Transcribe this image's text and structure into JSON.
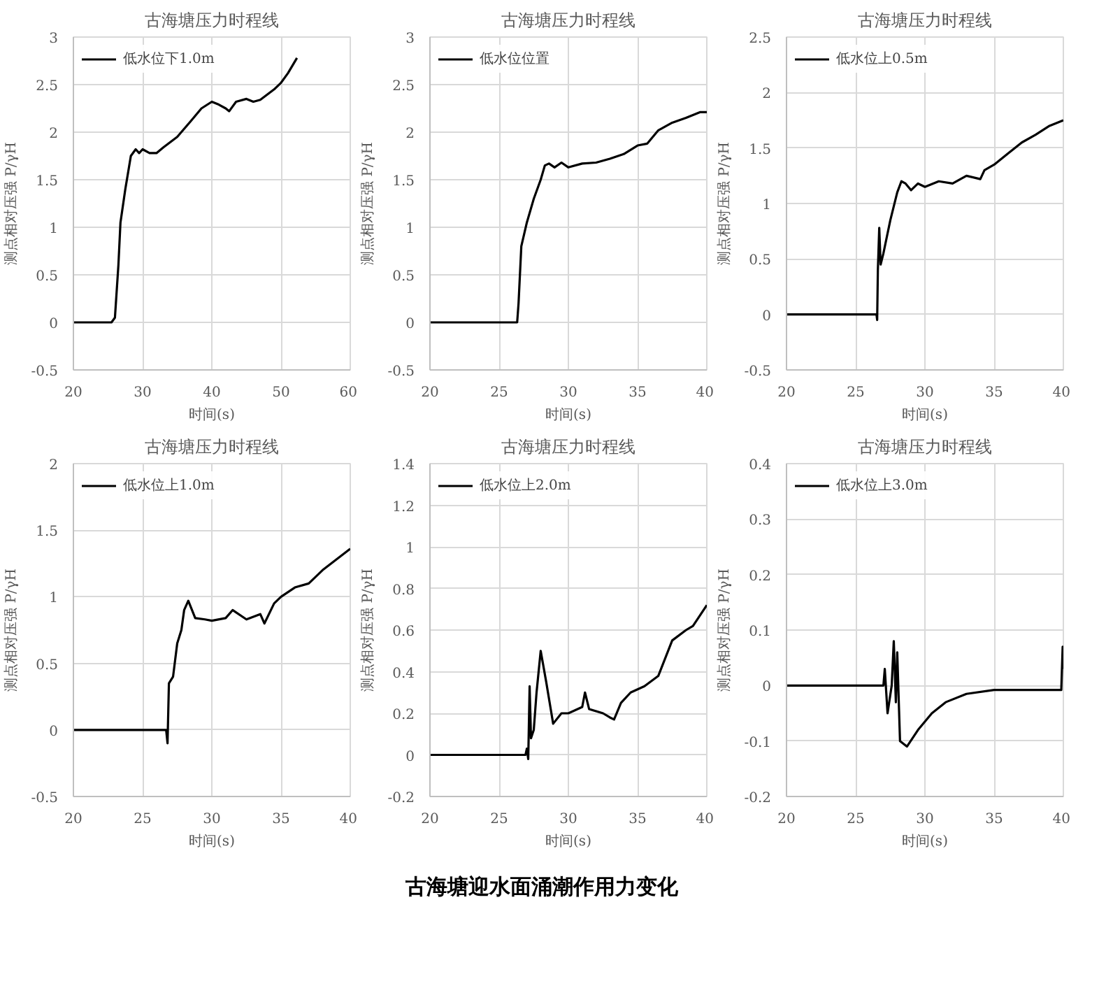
{
  "chart_data": [
    {
      "type": "line",
      "title": "古海塘压力时程线",
      "xlabel": "时间(s)",
      "ylabel": "测点相对压强 P/γH",
      "xlim": [
        20,
        60
      ],
      "xticks": [
        20,
        30,
        40,
        50,
        60
      ],
      "ylim": [
        -0.5,
        3
      ],
      "yticks": [
        -0.5,
        0,
        0.5,
        1,
        1.5,
        2,
        2.5,
        3
      ],
      "grid": true,
      "legend": "top left",
      "series": [
        {
          "name": "低水位下1.0m",
          "color": "#000000",
          "x": [
            20,
            25.5,
            26,
            26.5,
            26.8,
            27.5,
            28.3,
            29,
            29.5,
            30,
            31,
            32,
            33,
            35,
            37,
            38.5,
            40,
            41,
            42,
            42.5,
            43.5,
            45,
            46,
            47,
            49,
            50,
            51,
            52.3
          ],
          "values": [
            0,
            0,
            0.05,
            0.6,
            1.05,
            1.4,
            1.75,
            1.82,
            1.78,
            1.82,
            1.78,
            1.78,
            1.84,
            1.95,
            2.12,
            2.25,
            2.32,
            2.29,
            2.25,
            2.22,
            2.32,
            2.35,
            2.32,
            2.34,
            2.45,
            2.52,
            2.62,
            2.78
          ]
        }
      ]
    },
    {
      "type": "line",
      "title": "古海塘压力时程线",
      "xlabel": "时间(s)",
      "ylabel": "测点相对压强 P/γH",
      "xlim": [
        20,
        40
      ],
      "xticks": [
        20,
        25,
        30,
        35,
        40
      ],
      "ylim": [
        -0.5,
        3
      ],
      "yticks": [
        -0.5,
        0,
        0.5,
        1,
        1.5,
        2,
        2.5,
        3
      ],
      "grid": true,
      "legend": "top left",
      "series": [
        {
          "name": "低水位位置",
          "color": "#000000",
          "x": [
            20,
            26.3,
            26.4,
            26.6,
            27,
            27.5,
            28,
            28.3,
            28.6,
            29,
            29.5,
            30,
            31,
            32,
            33,
            34,
            35,
            35.7,
            36.5,
            37.5,
            38.5,
            39.5,
            40
          ],
          "values": [
            0,
            0,
            0.2,
            0.8,
            1.05,
            1.3,
            1.5,
            1.65,
            1.67,
            1.63,
            1.68,
            1.63,
            1.67,
            1.68,
            1.72,
            1.77,
            1.86,
            1.88,
            2.02,
            2.1,
            2.15,
            2.21,
            2.21
          ]
        }
      ]
    },
    {
      "type": "line",
      "title": "古海塘压力时程线",
      "xlabel": "时间(s)",
      "ylabel": "测点相对压强 P/γH",
      "xlim": [
        20,
        40
      ],
      "xticks": [
        20,
        25,
        30,
        35,
        40
      ],
      "ylim": [
        -0.5,
        2.5
      ],
      "yticks": [
        -0.5,
        0,
        0.5,
        1,
        1.5,
        2,
        2.5
      ],
      "grid": true,
      "legend": "top left",
      "series": [
        {
          "name": "低水位上0.5m",
          "color": "#000000",
          "x": [
            20,
            26.5,
            26.55,
            26.6,
            26.7,
            26.8,
            27,
            27.5,
            28,
            28.3,
            28.6,
            29,
            29.5,
            30,
            31,
            32,
            33,
            34,
            34.3,
            35,
            36,
            37,
            38,
            39,
            40
          ],
          "values": [
            0,
            0,
            -0.05,
            0.4,
            0.78,
            0.45,
            0.55,
            0.85,
            1.1,
            1.2,
            1.18,
            1.12,
            1.18,
            1.15,
            1.2,
            1.18,
            1.25,
            1.22,
            1.3,
            1.35,
            1.45,
            1.55,
            1.62,
            1.7,
            1.75
          ]
        }
      ]
    },
    {
      "type": "line",
      "title": "古海塘压力时程线",
      "xlabel": "时间(s)",
      "ylabel": "测点相对压强 P/γH",
      "xlim": [
        20,
        40
      ],
      "xticks": [
        20,
        25,
        30,
        35,
        40
      ],
      "ylim": [
        -0.5,
        2
      ],
      "yticks": [
        -0.5,
        0,
        0.5,
        1,
        1.5,
        2
      ],
      "grid": true,
      "legend": "top left",
      "series": [
        {
          "name": "低水位上1.0m",
          "color": "#000000",
          "x": [
            20,
            26.7,
            26.8,
            26.9,
            27.2,
            27.5,
            27.8,
            28,
            28.3,
            28.8,
            29.5,
            30,
            31,
            31.5,
            32.5,
            33.5,
            33.8,
            34.5,
            35,
            36,
            37,
            38,
            39,
            40
          ],
          "values": [
            0,
            0,
            -0.1,
            0.35,
            0.4,
            0.65,
            0.75,
            0.9,
            0.97,
            0.84,
            0.83,
            0.82,
            0.84,
            0.9,
            0.83,
            0.87,
            0.8,
            0.95,
            1.0,
            1.07,
            1.1,
            1.2,
            1.28,
            1.36
          ]
        }
      ]
    },
    {
      "type": "line",
      "title": "古海塘压力时程线",
      "xlabel": "时间(s)",
      "ylabel": "测点相对压强 P/γH",
      "xlim": [
        20,
        40
      ],
      "xticks": [
        20,
        25,
        30,
        35,
        40
      ],
      "ylim": [
        -0.2,
        1.4
      ],
      "yticks": [
        -0.2,
        0,
        0.2,
        0.4,
        0.6,
        0.8,
        1,
        1.2,
        1.4
      ],
      "grid": true,
      "legend": "top left",
      "series": [
        {
          "name": "低水位上2.0m",
          "color": "#000000",
          "x": [
            20,
            26.9,
            27.0,
            27.1,
            27.2,
            27.3,
            27.5,
            27.7,
            28,
            28.4,
            28.9,
            29.5,
            30,
            31,
            31.2,
            31.5,
            32.5,
            33,
            33.3,
            33.8,
            34.5,
            35.5,
            36.5,
            37.5,
            38.5,
            39,
            40
          ],
          "values": [
            0,
            0,
            0.03,
            -0.02,
            0.33,
            0.08,
            0.12,
            0.3,
            0.5,
            0.35,
            0.15,
            0.2,
            0.2,
            0.23,
            0.3,
            0.22,
            0.2,
            0.18,
            0.17,
            0.25,
            0.3,
            0.33,
            0.38,
            0.55,
            0.6,
            0.62,
            0.72
          ]
        }
      ]
    },
    {
      "type": "line",
      "title": "古海塘压力时程线",
      "xlabel": "时间(s)",
      "ylabel": "测点相对压强 P/γH",
      "xlim": [
        20,
        40
      ],
      "xticks": [
        20,
        25,
        30,
        35,
        40
      ],
      "ylim": [
        -0.2,
        0.4
      ],
      "yticks": [
        -0.2,
        -0.1,
        0,
        0.1,
        0.2,
        0.3,
        0.4
      ],
      "grid": true,
      "legend": "top left",
      "series": [
        {
          "name": "低水位上3.0m",
          "color": "#000000",
          "x": [
            20,
            27,
            27.1,
            27.3,
            27.6,
            27.75,
            27.9,
            28.0,
            28.2,
            28.7,
            29.5,
            30.5,
            31.5,
            33,
            35,
            38,
            39.85,
            39.95,
            40
          ],
          "values": [
            0,
            0,
            0.03,
            -0.05,
            0.0,
            0.08,
            -0.03,
            0.06,
            -0.1,
            -0.11,
            -0.08,
            -0.05,
            -0.03,
            -0.015,
            -0.008,
            -0.008,
            -0.008,
            0.07,
            0.03
          ]
        }
      ]
    },
    {
      "type": "other",
      "annotations": [
        "古海塘迎水面涌潮作用力变化"
      ]
    }
  ]
}
